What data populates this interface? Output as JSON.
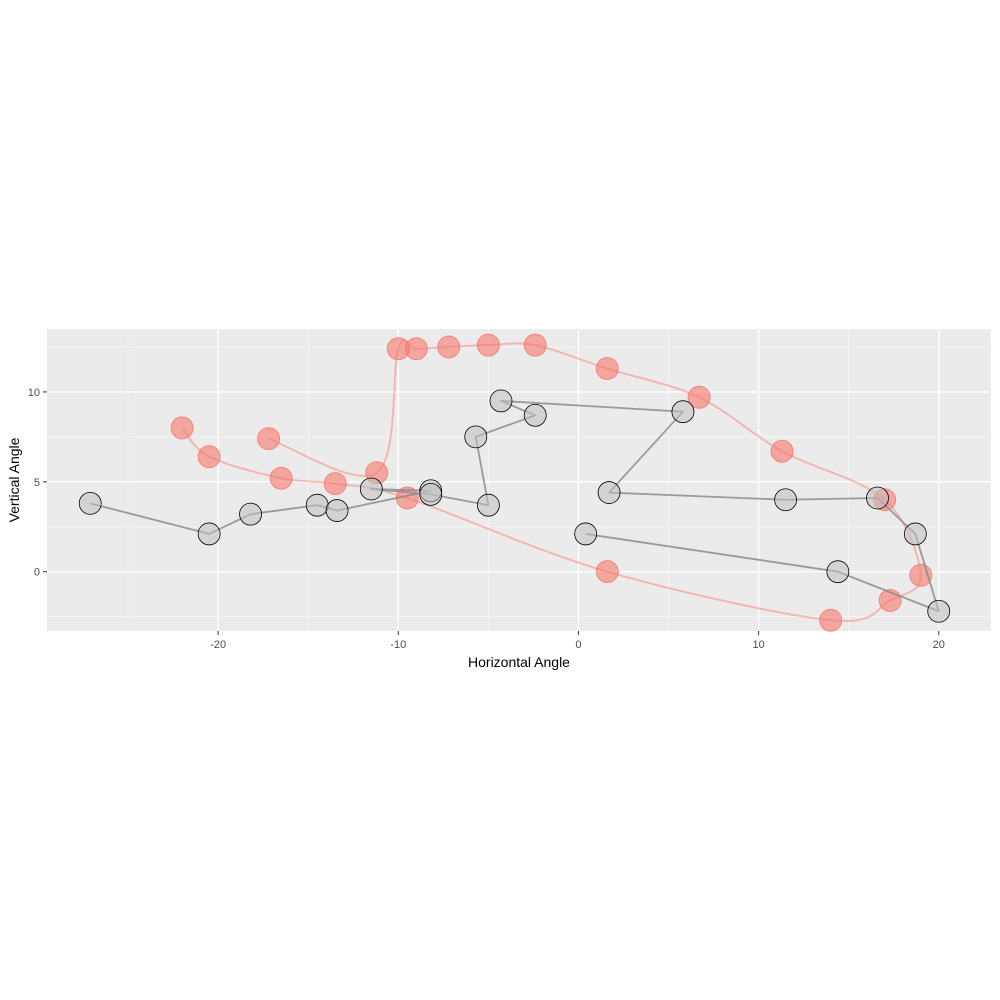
{
  "chart_data": {
    "type": "scatter",
    "xlabel": "Horizontal Angle",
    "ylabel": "Vertical Angle",
    "xlim": [
      -29.5,
      22.9
    ],
    "ylim": [
      -3.3,
      13.5
    ],
    "x_ticks": [
      -20,
      -10,
      0,
      10,
      20
    ],
    "y_ticks": [
      0,
      5,
      10
    ],
    "x_tick_labels": [
      "-20",
      "-10",
      "0",
      "10",
      "20"
    ],
    "y_tick_labels": [
      "0",
      "5",
      "10"
    ],
    "grid": true,
    "legend": "none",
    "series": [
      {
        "color": "#F8766D",
        "line_style": "smooth-path",
        "points": [
          {
            "x": -22.0,
            "y": 8.0
          },
          {
            "x": -20.5,
            "y": 6.4
          },
          {
            "x": -16.5,
            "y": 5.2
          },
          {
            "x": -13.5,
            "y": 4.9
          },
          {
            "x": -9.5,
            "y": 4.1
          },
          {
            "x": 1.6,
            "y": 0.0
          },
          {
            "x": 14.0,
            "y": -2.7
          },
          {
            "x": 17.3,
            "y": -1.6
          },
          {
            "x": 19.0,
            "y": -0.2
          },
          {
            "x": 17.0,
            "y": 4.0
          },
          {
            "x": 11.3,
            "y": 6.7
          },
          {
            "x": 6.7,
            "y": 9.7
          },
          {
            "x": 1.6,
            "y": 11.3
          },
          {
            "x": -2.4,
            "y": 12.6
          },
          {
            "x": -5.0,
            "y": 12.6
          },
          {
            "x": -7.2,
            "y": 12.5
          },
          {
            "x": -9.0,
            "y": 12.4
          },
          {
            "x": -10.0,
            "y": 12.4
          },
          {
            "x": -11.2,
            "y": 5.5
          },
          {
            "x": -17.2,
            "y": 7.4
          }
        ]
      },
      {
        "color": "#BFBFBF",
        "line_style": "straight-path",
        "points": [
          {
            "x": -27.1,
            "y": 3.8
          },
          {
            "x": -20.5,
            "y": 2.1
          },
          {
            "x": -18.2,
            "y": 3.2
          },
          {
            "x": -14.5,
            "y": 3.7
          },
          {
            "x": -13.4,
            "y": 3.4
          },
          {
            "x": -8.2,
            "y": 4.5
          },
          {
            "x": -11.5,
            "y": 4.6
          },
          {
            "x": -8.2,
            "y": 4.3
          },
          {
            "x": -5.0,
            "y": 3.7
          },
          {
            "x": -5.7,
            "y": 7.5
          },
          {
            "x": -2.4,
            "y": 8.7
          },
          {
            "x": -4.3,
            "y": 9.5
          },
          {
            "x": 5.8,
            "y": 8.9
          },
          {
            "x": 1.7,
            "y": 4.4
          },
          {
            "x": 11.5,
            "y": 4.0
          },
          {
            "x": 16.6,
            "y": 4.1
          },
          {
            "x": 18.7,
            "y": 2.1
          },
          {
            "x": 20.0,
            "y": -2.2
          },
          {
            "x": 14.4,
            "y": 0.0
          },
          {
            "x": 0.4,
            "y": 2.1
          }
        ]
      }
    ]
  }
}
